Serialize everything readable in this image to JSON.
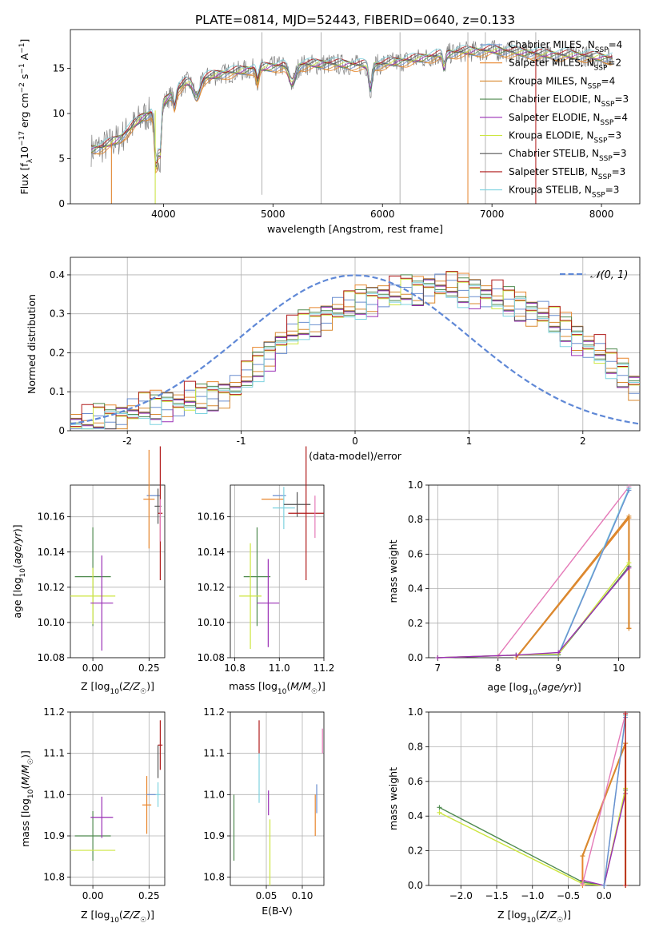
{
  "figure_title": "PLATE=0814, MJD=52443, FIBERID=0640, z=0.133",
  "colors": {
    "Chabrier MILES": "#6a8ecf",
    "Salpeter MILES": "#e8862d",
    "Kroupa MILES": "#d9892f",
    "Chabrier ELODIE": "#4f8a4f",
    "Salpeter ELODIE": "#9a2fb5",
    "Kroupa ELODIE": "#cde640",
    "Chabrier STELIB": "#555555",
    "Salpeter STELIB": "#b01a1a",
    "Kroupa STELIB": "#7ed3e0",
    "pink": "#e57ab8",
    "normal": "#5f88d6",
    "data": "#808080"
  },
  "chart_data": [
    {
      "id": "spectrum",
      "type": "line",
      "title": "PLATE=0814, MJD=52443, FIBERID=0640, z=0.133",
      "xlabel": "wavelength [Angstrom, rest frame]",
      "ylabel": "Flux [f_λ 10^-17 erg cm^-2 s^-1 A^-1]",
      "xlim": [
        3150,
        8350
      ],
      "ylim": [
        0,
        19.3
      ],
      "xticks": [
        4000,
        5000,
        6000,
        7000,
        8000
      ],
      "yticks": [
        0,
        5,
        10,
        15
      ],
      "grid": false,
      "legend_position": "top-right",
      "legend": [
        {
          "label": "Chabrier MILES, N",
          "sub": "SSP",
          "tail": "=4",
          "color_key": "Chabrier MILES"
        },
        {
          "label": "Salpeter MILES, N",
          "sub": "SSP",
          "tail": "=2",
          "color_key": "Salpeter MILES"
        },
        {
          "label": "Kroupa MILES, N",
          "sub": "SSP",
          "tail": "=4",
          "color_key": "Kroupa MILES"
        },
        {
          "label": "Chabrier ELODIE, N",
          "sub": "SSP",
          "tail": "=3",
          "color_key": "Chabrier ELODIE"
        },
        {
          "label": "Salpeter ELODIE, N",
          "sub": "SSP",
          "tail": "=4",
          "color_key": "Salpeter ELODIE"
        },
        {
          "label": "Kroupa ELODIE, N",
          "sub": "SSP",
          "tail": "=3",
          "color_key": "Kroupa ELODIE"
        },
        {
          "label": "Chabrier STELIB, N",
          "sub": "SSP",
          "tail": "=3",
          "color_key": "Chabrier STELIB"
        },
        {
          "label": "Salpeter STELIB, N",
          "sub": "SSP",
          "tail": "=3",
          "color_key": "Salpeter STELIB"
        },
        {
          "label": "Kroupa STELIB, N",
          "sub": "SSP",
          "tail": "=3",
          "color_key": "Kroupa STELIB"
        }
      ],
      "continuum_knots": {
        "x": [
          3340,
          3450,
          3600,
          3800,
          3950,
          4050,
          4200,
          4500,
          4800,
          5100,
          5500,
          5900,
          6300,
          6700,
          7000,
          7400,
          7800,
          8100
        ],
        "y": [
          6.0,
          6.3,
          7.2,
          9.5,
          10.5,
          11.8,
          13.4,
          14.3,
          14.9,
          15.3,
          15.5,
          15.3,
          16.0,
          16.8,
          17.0,
          16.6,
          16.4,
          16.1
        ]
      },
      "absorption_features": [
        {
          "x": 3934,
          "depth": 6.5,
          "width": 15
        },
        {
          "x": 3969,
          "depth": 5.0,
          "width": 12
        },
        {
          "x": 4102,
          "depth": 1.5,
          "width": 12
        },
        {
          "x": 4304,
          "depth": 1.8,
          "width": 30
        },
        {
          "x": 4861,
          "depth": 1.5,
          "width": 12
        },
        {
          "x": 5175,
          "depth": 2.0,
          "width": 30
        },
        {
          "x": 5890,
          "depth": 2.5,
          "width": 15
        },
        {
          "x": 6563,
          "depth": 1.5,
          "width": 12
        }
      ],
      "data_noise_amp": 1.2,
      "data_outliers": [
        {
          "x": 3525,
          "y_low": 0,
          "y_high": 7
        },
        {
          "x": 3925,
          "y_low": 0,
          "y_high": 9
        },
        {
          "x": 4900,
          "y_low": 1,
          "y_high": 19
        },
        {
          "x": 5440,
          "y_low": 0,
          "y_high": 19
        },
        {
          "x": 6160,
          "y_low": 0,
          "y_high": 19
        },
        {
          "x": 6780,
          "y_low": 0,
          "y_high": 19
        },
        {
          "x": 6940,
          "y_low": 0,
          "y_high": 19
        },
        {
          "x": 7400,
          "y_low": 0,
          "y_high": 19
        }
      ]
    },
    {
      "id": "residuals",
      "type": "histogram",
      "xlabel": "(data-model)/error",
      "ylabel": "Normed distribution",
      "xlim": [
        -2.5,
        2.5
      ],
      "ylim": [
        0,
        0.445
      ],
      "xticks": [
        -2,
        -1,
        0,
        1,
        2
      ],
      "yticks": [
        0.0,
        0.1,
        0.2,
        0.3,
        0.4
      ],
      "grid": true,
      "legend_position": "top-right",
      "normal_label": "𝒩(0, 1)",
      "bin_edges_start": -2.5,
      "bin_width": 0.1,
      "base_profile": [
        0.02,
        0.02,
        0.03,
        0.03,
        0.04,
        0.05,
        0.06,
        0.06,
        0.07,
        0.07,
        0.08,
        0.08,
        0.09,
        0.1,
        0.11,
        0.14,
        0.17,
        0.2,
        0.23,
        0.25,
        0.27,
        0.28,
        0.3,
        0.31,
        0.32,
        0.33,
        0.34,
        0.35,
        0.35,
        0.36,
        0.36,
        0.37,
        0.37,
        0.37,
        0.36,
        0.36,
        0.35,
        0.34,
        0.33,
        0.32,
        0.31,
        0.3,
        0.28,
        0.26,
        0.24,
        0.22,
        0.2,
        0.17,
        0.15,
        0.12
      ],
      "series_offsets": [
        0.0,
        0.012,
        -0.01,
        0.008,
        -0.015,
        0.005,
        -0.005,
        0.015,
        -0.012
      ]
    },
    {
      "id": "age_vs_Z",
      "type": "errorbar",
      "xlabel": "Z [log10(Z/Z☉)]",
      "ylabel": "age [log10(age/yr)]",
      "xlim": [
        -0.1,
        0.32
      ],
      "ylim": [
        10.08,
        10.178
      ],
      "xticks": [
        0.0,
        0.25
      ],
      "xtick_labels": [
        "0.00",
        "0.25"
      ],
      "yticks": [
        10.08,
        10.1,
        10.12,
        10.14,
        10.16
      ],
      "ytick_labels": [
        "10.08",
        "10.10",
        "10.12",
        "10.14",
        "10.16"
      ],
      "grid": true,
      "points": [
        {
          "series": "Chabrier ELODIE",
          "x": 0.0,
          "xerr": 0.08,
          "y": 10.126,
          "yerr": 0.028
        },
        {
          "series": "Kroupa ELODIE",
          "x": 0.0,
          "xerr": 0.1,
          "y": 10.115,
          "yerr": 0.016
        },
        {
          "series": "Salpeter ELODIE",
          "x": 0.04,
          "xerr": 0.05,
          "y": 10.111,
          "yerr": 0.027
        },
        {
          "series": "Chabrier MILES",
          "x": 0.27,
          "xerr": 0.03,
          "y": 10.172,
          "yerr": 0.0
        },
        {
          "series": "Salpeter MILES",
          "x": 0.25,
          "xerr": 0.025,
          "y": 10.17,
          "yerr": 0.028
        },
        {
          "series": "Chabrier STELIB",
          "x": 0.29,
          "xerr": 0.015,
          "y": 10.166,
          "yerr": 0.01
        },
        {
          "series": "Salpeter STELIB",
          "x": 0.3,
          "xerr": 0.01,
          "y": 10.162,
          "yerr": 0.038
        },
        {
          "series": "pink",
          "x": 0.3,
          "xerr": 0.0,
          "y": 10.158,
          "yerr": 0.012
        },
        {
          "series": "Kroupa STELIB",
          "x": 0.3,
          "xerr": 0.0,
          "y": 10.17,
          "yerr": 0.0
        }
      ]
    },
    {
      "id": "age_vs_mass",
      "type": "errorbar",
      "xlabel": "mass [log10(M/M☉)]",
      "ylabel": "",
      "xlim": [
        10.78,
        11.2
      ],
      "ylim": [
        10.08,
        10.178
      ],
      "xticks": [
        10.8,
        11.0,
        11.2
      ],
      "xtick_labels": [
        "10.8",
        "11.0",
        "11.2"
      ],
      "yticks": [
        10.08,
        10.1,
        10.12,
        10.14,
        10.16
      ],
      "ytick_labels": [
        "10.08",
        "10.10",
        "10.12",
        "10.14",
        "10.16"
      ],
      "grid": true,
      "points": [
        {
          "series": "Chabrier ELODIE",
          "x": 10.9,
          "xerr": 0.06,
          "y": 10.126,
          "yerr": 0.028
        },
        {
          "series": "Kroupa ELODIE",
          "x": 10.87,
          "xerr": 0.05,
          "y": 10.115,
          "yerr": 0.03
        },
        {
          "series": "Salpeter ELODIE",
          "x": 10.95,
          "xerr": 0.05,
          "y": 10.111,
          "yerr": 0.025
        },
        {
          "series": "Chabrier MILES",
          "x": 11.0,
          "xerr": 0.03,
          "y": 10.172,
          "yerr": 0.0
        },
        {
          "series": "Salpeter MILES",
          "x": 10.97,
          "xerr": 0.05,
          "y": 10.17,
          "yerr": 0.0
        },
        {
          "series": "Kroupa STELIB",
          "x": 11.02,
          "xerr": 0.05,
          "y": 10.165,
          "yerr": 0.012
        },
        {
          "series": "Chabrier STELIB",
          "x": 11.08,
          "xerr": 0.06,
          "y": 10.167,
          "yerr": 0.007
        },
        {
          "series": "Salpeter STELIB",
          "x": 11.12,
          "xerr": 0.08,
          "y": 10.162,
          "yerr": 0.038
        },
        {
          "series": "pink",
          "x": 11.16,
          "xerr": 0.0,
          "y": 10.16,
          "yerr": 0.012
        }
      ]
    },
    {
      "id": "weight_vs_age",
      "type": "line",
      "xlabel": "age [log10(age/yr)]",
      "ylabel": "mass weight",
      "xlim": [
        6.85,
        10.35
      ],
      "ylim": [
        0,
        1.0
      ],
      "xticks": [
        7,
        8,
        9,
        10
      ],
      "xtick_labels": [
        "7",
        "8",
        "9",
        "10"
      ],
      "yticks": [
        0.0,
        0.2,
        0.4,
        0.6,
        0.8,
        1.0
      ],
      "ytick_labels": [
        "0.0",
        "0.2",
        "0.4",
        "0.6",
        "0.8",
        "1.0"
      ],
      "grid": true,
      "series": [
        {
          "series": "pink",
          "x": [
            8.0,
            10.17
          ],
          "y": [
            0.01,
            0.99
          ]
        },
        {
          "series": "Salpeter MILES",
          "x": [
            8.3,
            10.17
          ],
          "y": [
            0.0,
            0.81
          ],
          "tail": [
            0.81,
            0.17
          ]
        },
        {
          "series": "Kroupa MILES",
          "x": [
            8.3,
            10.17
          ],
          "y": [
            0.0,
            0.82
          ],
          "tail": [
            0.82,
            0.17
          ]
        },
        {
          "series": "Kroupa STELIB",
          "x": [
            8.3,
            9.0,
            10.17
          ],
          "y": [
            0.015,
            0.02,
            0.98
          ]
        },
        {
          "series": "Chabrier MILES",
          "x": [
            8.3,
            9.0,
            10.17
          ],
          "y": [
            0.015,
            0.015,
            0.97
          ]
        },
        {
          "series": "Chabrier ELODIE",
          "x": [
            7.0,
            8.3,
            9.0,
            10.17
          ],
          "y": [
            0.0,
            0.015,
            0.02,
            0.53
          ]
        },
        {
          "series": "Kroupa ELODIE",
          "x": [
            7.0,
            8.3,
            9.0,
            10.17
          ],
          "y": [
            0.0,
            0.015,
            0.02,
            0.55
          ]
        },
        {
          "series": "Salpeter ELODIE",
          "x": [
            7.0,
            8.3,
            9.0,
            10.17
          ],
          "y": [
            0.0,
            0.015,
            0.03,
            0.52
          ]
        }
      ]
    },
    {
      "id": "mass_vs_Z",
      "type": "errorbar",
      "xlabel": "Z [log10(Z/Z☉)]",
      "ylabel": "mass [log10(M/M☉)]",
      "xlim": [
        -0.1,
        0.32
      ],
      "ylim": [
        10.78,
        11.2
      ],
      "xticks": [
        0.0,
        0.25
      ],
      "xtick_labels": [
        "0.00",
        "0.25"
      ],
      "yticks": [
        10.8,
        10.9,
        11.0,
        11.1,
        11.2
      ],
      "ytick_labels": [
        "10.8",
        "10.9",
        "11.0",
        "11.1",
        "11.2"
      ],
      "grid": true,
      "points": [
        {
          "series": "Chabrier ELODIE",
          "x": 0.0,
          "xerr": 0.08,
          "y": 10.9,
          "yerr": 0.06
        },
        {
          "series": "Kroupa ELODIE",
          "x": 0.0,
          "xerr": 0.1,
          "y": 10.865,
          "yerr": 0.0
        },
        {
          "series": "Salpeter ELODIE",
          "x": 0.04,
          "xerr": 0.05,
          "y": 10.945,
          "yerr": 0.05
        },
        {
          "series": "Salpeter MILES",
          "x": 0.24,
          "xerr": 0.02,
          "y": 10.975,
          "yerr": 0.07
        },
        {
          "series": "Chabrier MILES",
          "x": 0.26,
          "xerr": 0.02,
          "y": 11.0,
          "yerr": 0.0
        },
        {
          "series": "Kroupa STELIB",
          "x": 0.29,
          "xerr": 0.01,
          "y": 11.0,
          "yerr": 0.03
        },
        {
          "series": "Chabrier STELIB",
          "x": 0.29,
          "xerr": 0.0,
          "y": 11.08,
          "yerr": 0.04
        },
        {
          "series": "Salpeter STELIB",
          "x": 0.3,
          "xerr": 0.01,
          "y": 11.12,
          "yerr": 0.06
        },
        {
          "series": "pink",
          "x": 0.3,
          "xerr": 0.0,
          "y": 11.14,
          "yerr": 0.0
        }
      ]
    },
    {
      "id": "mass_vs_EBV",
      "type": "errorbar",
      "xlabel": "E(B-V)",
      "ylabel": "",
      "xlim": [
        0.0,
        0.13
      ],
      "ylim": [
        10.78,
        11.2
      ],
      "xticks": [
        0.05,
        0.1
      ],
      "xtick_labels": [
        "0.05",
        "0.10"
      ],
      "yticks": [
        10.8,
        10.9,
        11.0,
        11.1,
        11.2
      ],
      "ytick_labels": [
        "10.8",
        "10.9",
        "11.0",
        "11.1",
        "11.2"
      ],
      "grid": true,
      "points": [
        {
          "series": "Chabrier ELODIE",
          "x": 0.005,
          "xerr": 0.0,
          "y": 10.92,
          "yerr": 0.08
        },
        {
          "series": "Salpeter STELIB",
          "x": 0.04,
          "xerr": 0.0,
          "y": 11.14,
          "yerr": 0.04
        },
        {
          "series": "Kroupa STELIB",
          "x": 0.04,
          "xerr": 0.0,
          "y": 11.04,
          "yerr": 0.06
        },
        {
          "series": "Salpeter ELODIE",
          "x": 0.053,
          "xerr": 0.0,
          "y": 10.98,
          "yerr": 0.03
        },
        {
          "series": "Kroupa ELODIE",
          "x": 0.055,
          "xerr": 0.0,
          "y": 10.86,
          "yerr": 0.08
        },
        {
          "series": "Salpeter MILES",
          "x": 0.118,
          "xerr": 0.0,
          "y": 10.95,
          "yerr": 0.05
        },
        {
          "series": "Chabrier MILES",
          "x": 0.12,
          "xerr": 0.0,
          "y": 10.99,
          "yerr": 0.035
        },
        {
          "series": "pink",
          "x": 0.128,
          "xerr": 0.0,
          "y": 11.13,
          "yerr": 0.03
        }
      ]
    },
    {
      "id": "weight_vs_Z",
      "type": "line",
      "xlabel": "Z [log10(Z/Z☉)]",
      "ylabel": "mass weight",
      "xlim": [
        -2.45,
        0.5
      ],
      "ylim": [
        0,
        1.0
      ],
      "xticks": [
        -2.0,
        -1.5,
        -1.0,
        -0.5,
        0.0
      ],
      "xtick_labels": [
        "−2.0",
        "−1.5",
        "−1.0",
        "−0.5",
        "0.0"
      ],
      "yticks": [
        0.0,
        0.2,
        0.4,
        0.6,
        0.8,
        1.0
      ],
      "ytick_labels": [
        "0.0",
        "0.2",
        "0.4",
        "0.6",
        "0.8",
        "1.0"
      ],
      "grid": true,
      "series": [
        {
          "series": "Chabrier ELODIE",
          "x": [
            -2.3,
            -0.3,
            0.0,
            0.3
          ],
          "y": [
            0.45,
            0.02,
            0.0,
            0.55
          ]
        },
        {
          "series": "Kroupa ELODIE",
          "x": [
            -2.3,
            -0.3,
            0.0,
            0.3
          ],
          "y": [
            0.42,
            0.01,
            0.0,
            0.56
          ]
        },
        {
          "series": "Salpeter ELODIE",
          "x": [
            -0.3,
            0.0,
            0.3
          ],
          "y": [
            0.03,
            0.0,
            0.53
          ]
        },
        {
          "series": "Salpeter MILES",
          "x": [
            -0.3,
            -0.3,
            0.3,
            0.3
          ],
          "y": [
            0.0,
            0.17,
            0.82,
            0.0
          ]
        },
        {
          "series": "Kroupa MILES",
          "x": [
            -0.3,
            0.3,
            0.3
          ],
          "y": [
            0.17,
            0.82,
            0.0
          ]
        },
        {
          "series": "pink",
          "x": [
            -0.3,
            0.3
          ],
          "y": [
            0.01,
            0.99
          ]
        },
        {
          "series": "Kroupa STELIB",
          "x": [
            0.0,
            0.3
          ],
          "y": [
            0.0,
            0.98
          ]
        },
        {
          "series": "Chabrier MILES",
          "x": [
            0.0,
            0.3
          ],
          "y": [
            0.0,
            0.97
          ]
        },
        {
          "series": "Salpeter STELIB",
          "x": [
            0.3,
            0.3
          ],
          "y": [
            0.0,
            0.99
          ]
        }
      ]
    }
  ]
}
